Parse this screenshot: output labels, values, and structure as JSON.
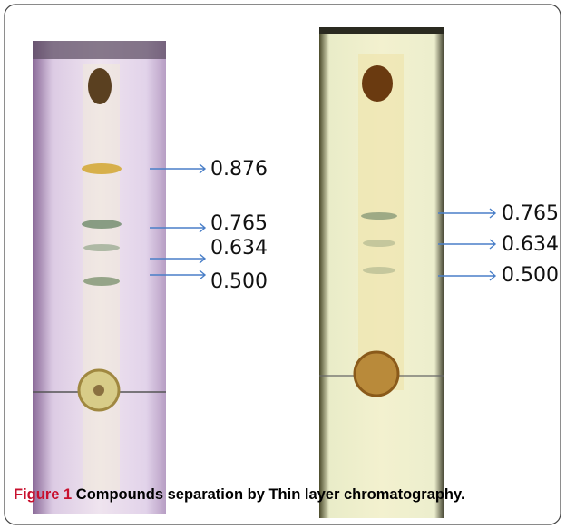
{
  "panels": [
    {
      "labels": [
        "0.876",
        "0.765",
        "0.634",
        "0.500"
      ]
    },
    {
      "labels": [
        "0.765",
        "0.634",
        "0.500"
      ]
    }
  ],
  "caption": {
    "label": "Figure 1",
    "text": "Compounds separation by Thin layer chromatography."
  }
}
